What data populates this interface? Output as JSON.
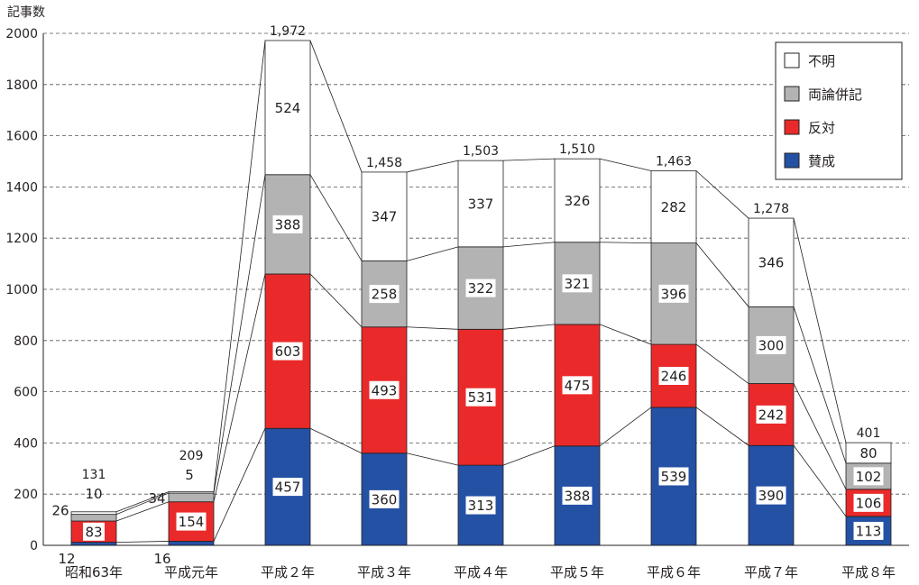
{
  "chart_data": {
    "type": "bar",
    "stacked": true,
    "ylabel": "記事数",
    "ylim": [
      0,
      2000
    ],
    "yticks": [
      0,
      200,
      400,
      600,
      800,
      1000,
      1200,
      1400,
      1600,
      1800,
      2000
    ],
    "grid": true,
    "legend_position": "top-right",
    "categories": [
      "昭和63年",
      "平成元年",
      "平成２年",
      "平成３年",
      "平成４年",
      "平成５年",
      "平成６年",
      "平成７年",
      "平成８年"
    ],
    "series": [
      {
        "name": "賛成",
        "color": "#2451a4",
        "values": [
          12,
          16,
          457,
          360,
          313,
          388,
          539,
          390,
          113
        ]
      },
      {
        "name": "反対",
        "color": "#ea2a2a",
        "values": [
          83,
          154,
          603,
          493,
          531,
          475,
          246,
          242,
          106
        ]
      },
      {
        "name": "両論併記",
        "color": "#b3b3b3",
        "values": [
          26,
          34,
          388,
          258,
          322,
          321,
          396,
          300,
          102
        ]
      },
      {
        "name": "不明",
        "color": "#ffffff",
        "values": [
          10,
          5,
          524,
          347,
          337,
          326,
          282,
          346,
          80
        ]
      }
    ],
    "totals": [
      "131",
      "209",
      "1,972",
      "1,458",
      "1,503",
      "1,510",
      "1,463",
      "1,278",
      "401"
    ]
  }
}
